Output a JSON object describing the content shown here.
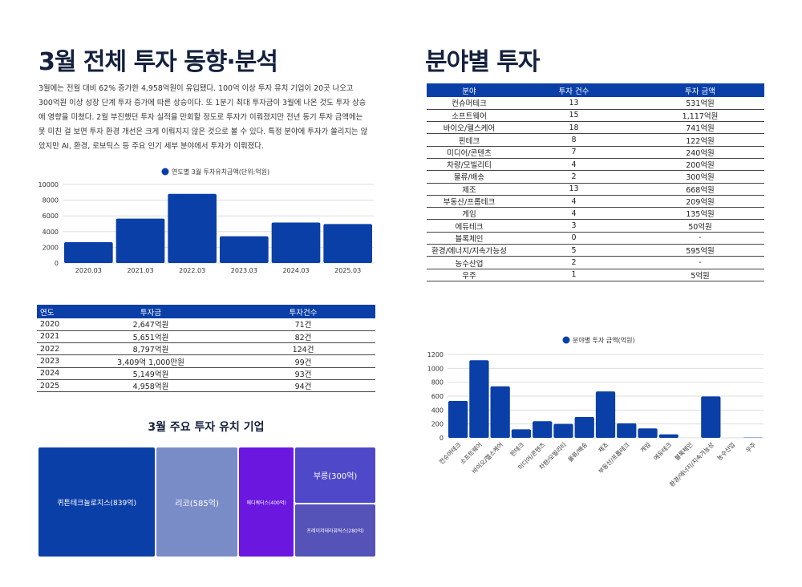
{
  "left": {
    "title": "3월 전체 투자 동향·분석",
    "paragraph": [
      "3월에는 전월 대비 62% 증가한 4,958억원이 유입됐다. 100억 이상 투자 유치 기업이 20곳 나오고",
      "300억원 이상 성장 단계 투자 증가에 따른 상승이다. 또 1분기 최대 투자금이 3월에 나온 것도 투자 상승",
      "에 영향을 미쳤다. 2월 부진했던 투자 실적을 만회할 정도로 투자가 이뤄졌지만 전년 동기 투자 금액에는",
      "못 미친 걸 보면 투자 환경 개선은 크게 이뤄지지 않은 것으로 볼 수 있다. 특정 분야에 투자가 쏠리지는 않",
      "았지만 AI, 환경, 로보틱스 등 주요 인기 세부 분야에서 투자가 이뤄졌다."
    ],
    "year_table": {
      "headers": [
        "연도",
        "투자금",
        "투자건수"
      ],
      "rows": [
        [
          "2020",
          "2,647억원",
          "71건"
        ],
        [
          "2021",
          "5,651억원",
          "82건"
        ],
        [
          "2022",
          "8,797억원",
          "124건"
        ],
        [
          "2023",
          "3,409억 1,000만원",
          "99건"
        ],
        [
          "2024",
          "5,149억원",
          "93건"
        ],
        [
          "2025",
          "4,958억원",
          "94건"
        ]
      ]
    },
    "treemap_title": "3월 주요 투자 유치 기업",
    "treemap": [
      {
        "label": "퀴튼테크놀로지스(839억)",
        "value": 839,
        "color": "#0b3fa8"
      },
      {
        "label": "리코(585억)",
        "value": 585,
        "color": "#7a8cc8"
      },
      {
        "label": "메디쿼터스(400억)",
        "value": 400,
        "color": "#6b17e0"
      },
      {
        "label": "부릉(300억)",
        "value": 300,
        "color": "#4f49c9"
      },
      {
        "label": "프레이저테라퓨틱스(280억)",
        "value": 280,
        "color": "#5552b8"
      }
    ]
  },
  "right": {
    "title": "분야별 투자",
    "sector_table": {
      "headers": [
        "분야",
        "투자 건수",
        "투자 금액"
      ],
      "rows": [
        [
          "컨슈머테크",
          "13",
          "531억원"
        ],
        [
          "소프트웨어",
          "15",
          "1,117억원"
        ],
        [
          "바이오/헬스케어",
          "18",
          "741억원"
        ],
        [
          "핀테크",
          "8",
          "122억원"
        ],
        [
          "미디어/콘텐츠",
          "7",
          "240억원"
        ],
        [
          "차량/모빌리티",
          "4",
          "200억원"
        ],
        [
          "물류/배송",
          "2",
          "300억원"
        ],
        [
          "제조",
          "13",
          "668억원"
        ],
        [
          "부동산/프롭테크",
          "4",
          "209억원"
        ],
        [
          "게임",
          "4",
          "135억원"
        ],
        [
          "에듀테크",
          "3",
          "50억원"
        ],
        [
          "블록체인",
          "0",
          "-"
        ],
        [
          "환경/에너지/지속가능성",
          "5",
          "595억원"
        ],
        [
          "농수산업",
          "2",
          "-"
        ],
        [
          "우주",
          "1",
          "5억원"
        ]
      ]
    }
  },
  "chart_data": [
    {
      "type": "bar",
      "legend": "연도별 3월 투자유치금액(단위:억원)",
      "legend_position": "top",
      "categories": [
        "2020.03",
        "2021.03",
        "2022.03",
        "2023.03",
        "2024.03",
        "2025.03"
      ],
      "values": [
        2647,
        5651,
        8797,
        3409,
        5149,
        4958
      ],
      "ylim": [
        0,
        10000
      ],
      "yticks": [
        "0",
        "2000",
        "4000",
        "6000",
        "8000",
        "10000"
      ],
      "color": "#0b3fa8",
      "grid": true
    },
    {
      "type": "bar",
      "legend": "분야별 투자 금액(억원)",
      "legend_position": "top",
      "categories": [
        "컨슈머테크",
        "소프트웨어",
        "바이오/헬스케어",
        "핀테크",
        "미디어/콘텐츠",
        "차량/모빌리티",
        "물류/배송",
        "제조",
        "부동산/프롭테크",
        "게임",
        "에듀테크",
        "블록체인",
        "환경/에너지/지속가능성",
        "농수산업",
        "우주"
      ],
      "values": [
        531,
        1117,
        741,
        122,
        240,
        200,
        300,
        668,
        209,
        135,
        50,
        0,
        595,
        0,
        5
      ],
      "ylim": [
        0,
        1200
      ],
      "yticks": [
        "0",
        "200",
        "400",
        "600",
        "800",
        "1000",
        "1200"
      ],
      "color": "#0b3fa8",
      "grid": true
    }
  ]
}
